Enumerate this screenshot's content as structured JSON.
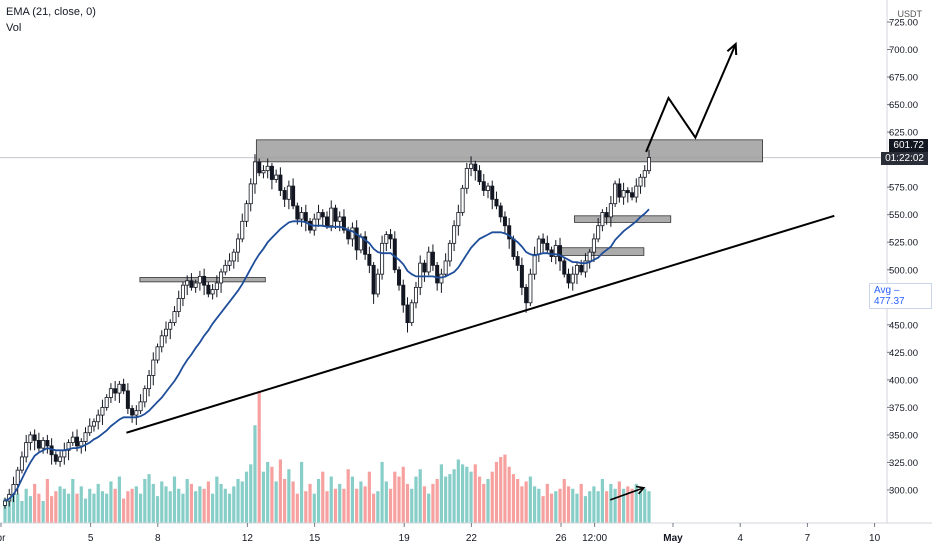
{
  "chart_data": {
    "type": "candlestick",
    "indicators": {
      "ema_label": "EMA (21, close, 0)",
      "vol_label": "Vol"
    },
    "y_axis": {
      "unit": "USDT",
      "ticks": [
        "725.00",
        "700.00",
        "675.00",
        "650.00",
        "625.00",
        "600.00",
        "575.00",
        "550.00",
        "525.00",
        "500.00",
        "475.00",
        "450.00",
        "425.00",
        "400.00",
        "375.00",
        "350.00",
        "325.00",
        "300.00"
      ],
      "range": [
        270,
        745
      ]
    },
    "x_axis": {
      "ticks": [
        {
          "label": "pr",
          "day": 1.0
        },
        {
          "label": "5",
          "day": 5
        },
        {
          "label": "8",
          "day": 8
        },
        {
          "label": "12",
          "day": 12
        },
        {
          "label": "15",
          "day": 15
        },
        {
          "label": "19",
          "day": 19
        },
        {
          "label": "22",
          "day": 22
        },
        {
          "label": "26",
          "day": 26
        },
        {
          "label": "12:00",
          "day": 27.5
        },
        {
          "label": "May",
          "day": 31
        },
        {
          "label": "4",
          "day": 34
        },
        {
          "label": "7",
          "day": 37
        },
        {
          "label": "10",
          "day": 40
        }
      ]
    },
    "current_price": {
      "value": "601.72",
      "countdown": "01:22:02"
    },
    "avg_label": "Avg",
    "avg_value": "477.37",
    "closes": [
      290,
      296,
      305,
      318,
      330,
      343,
      350,
      345,
      338,
      345,
      340,
      332,
      326,
      330,
      336,
      343,
      348,
      340,
      344,
      352,
      358,
      362,
      368,
      375,
      384,
      392,
      388,
      396,
      390,
      374,
      368,
      372,
      380,
      392,
      404,
      418,
      430,
      440,
      446,
      452,
      462,
      474,
      486,
      490,
      484,
      488,
      494,
      486,
      478,
      482,
      488,
      498,
      504,
      508,
      516,
      528,
      544,
      560,
      578,
      598,
      588,
      590,
      594,
      582,
      586,
      572,
      564,
      576,
      558,
      546,
      552,
      544,
      536,
      546,
      552,
      548,
      540,
      556,
      544,
      548,
      536,
      528,
      538,
      518,
      530,
      514,
      504,
      478,
      496,
      524,
      532,
      528,
      500,
      486,
      468,
      452,
      470,
      484,
      506,
      498,
      516,
      504,
      488,
      496,
      508,
      524,
      540,
      552,
      574,
      592,
      596,
      590,
      580,
      572,
      576,
      564,
      558,
      548,
      540,
      528,
      512,
      504,
      484,
      470,
      496,
      514,
      528,
      524,
      518,
      512,
      522,
      508,
      496,
      488,
      496,
      504,
      498,
      508,
      516,
      528,
      540,
      552,
      548,
      560,
      578,
      566,
      572,
      570,
      566,
      576,
      584,
      590,
      602
    ],
    "ema": [
      290,
      292,
      296,
      302,
      310,
      318,
      325,
      331,
      334,
      336,
      338,
      337,
      336,
      336,
      336,
      337,
      338,
      338,
      339,
      341,
      343,
      346,
      348,
      351,
      354,
      358,
      361,
      364,
      366,
      366,
      366,
      366,
      367,
      369,
      372,
      376,
      380,
      384,
      389,
      394,
      399,
      405,
      412,
      418,
      423,
      429,
      434,
      440,
      445,
      451,
      456,
      461,
      466,
      471,
      476,
      481,
      487,
      494,
      501,
      508,
      514,
      519,
      525,
      529,
      533,
      537,
      540,
      543,
      544,
      544,
      544,
      543,
      541,
      540,
      540,
      540,
      539,
      539,
      539,
      539,
      538,
      536,
      535,
      532,
      530,
      527,
      524,
      519,
      516,
      515,
      515,
      515,
      512,
      509,
      505,
      499,
      496,
      494,
      494,
      494,
      494,
      494,
      493,
      493,
      494,
      496,
      498,
      502,
      508,
      514,
      520,
      524,
      528,
      530,
      532,
      534,
      534,
      534,
      533,
      531,
      528,
      525,
      521,
      516,
      514,
      513,
      514,
      515,
      515,
      514,
      514,
      513,
      511,
      509,
      507,
      507,
      506,
      506,
      507,
      509,
      511,
      515,
      518,
      521,
      527,
      531,
      535,
      538,
      541,
      544,
      548,
      551,
      555
    ],
    "volume": [
      10,
      12,
      15,
      12,
      9,
      14,
      11,
      16,
      12,
      9,
      18,
      11,
      13,
      15,
      14,
      12,
      18,
      12,
      15,
      10,
      14,
      12,
      16,
      13,
      12,
      17,
      14,
      19,
      10,
      13,
      14,
      15,
      12,
      18,
      20,
      16,
      11,
      17,
      15,
      13,
      19,
      14,
      12,
      18,
      16,
      13,
      15,
      14,
      17,
      12,
      19,
      16,
      14,
      12,
      15,
      18,
      17,
      21,
      24,
      40,
      54,
      21,
      25,
      23,
      17,
      26,
      18,
      22,
      17,
      12,
      25,
      13,
      16,
      12,
      18,
      21,
      13,
      19,
      14,
      16,
      14,
      22,
      19,
      14,
      17,
      15,
      21,
      12,
      13,
      25,
      17,
      14,
      21,
      19,
      23,
      16,
      14,
      19,
      22,
      15,
      12,
      16,
      18,
      24,
      19,
      20,
      22,
      26,
      24,
      23,
      21,
      24,
      19,
      16,
      18,
      21,
      25,
      27,
      28,
      23,
      20,
      18,
      15,
      17,
      19,
      15,
      14,
      11,
      16,
      12,
      13,
      14,
      18,
      15,
      14,
      12,
      16,
      11,
      13,
      15,
      13,
      18,
      13,
      16,
      14,
      17,
      14,
      15,
      14,
      16,
      13,
      14,
      13
    ],
    "horizontal_levels": [
      {
        "name": "top-resistance",
        "y1": 598,
        "y2": 618,
        "day_from": 12.4,
        "day_to": 35
      },
      {
        "name": "early-level",
        "y1": 489,
        "y2": 493,
        "day_from": 7.2,
        "day_to": 12.8
      },
      {
        "name": "support-box-upper",
        "y1": 543,
        "y2": 549,
        "day_from": 26.6,
        "day_to": 30.9
      },
      {
        "name": "support-box-lower",
        "y1": 513,
        "y2": 520,
        "day_from": 25.7,
        "day_to": 29.7
      }
    ],
    "trendline": {
      "from": {
        "day": 6.6,
        "price": 352
      },
      "to": {
        "day": 38.2,
        "price": 549
      }
    },
    "projection": [
      {
        "day": 29.8,
        "price": 607
      },
      {
        "day": 30.8,
        "price": 656
      },
      {
        "day": 32.0,
        "price": 620
      },
      {
        "day": 33.8,
        "price": 705
      }
    ],
    "volume_arrow": [
      {
        "day": 28.2,
        "price": 291
      },
      {
        "day": 29.7,
        "price": 302
      }
    ],
    "colors": {
      "up": "#26a69a",
      "down": "#ef5350",
      "candle": "#131722",
      "ema": "#1f4e9a",
      "trend": "#000000",
      "levels": "#9e9e9e"
    }
  }
}
